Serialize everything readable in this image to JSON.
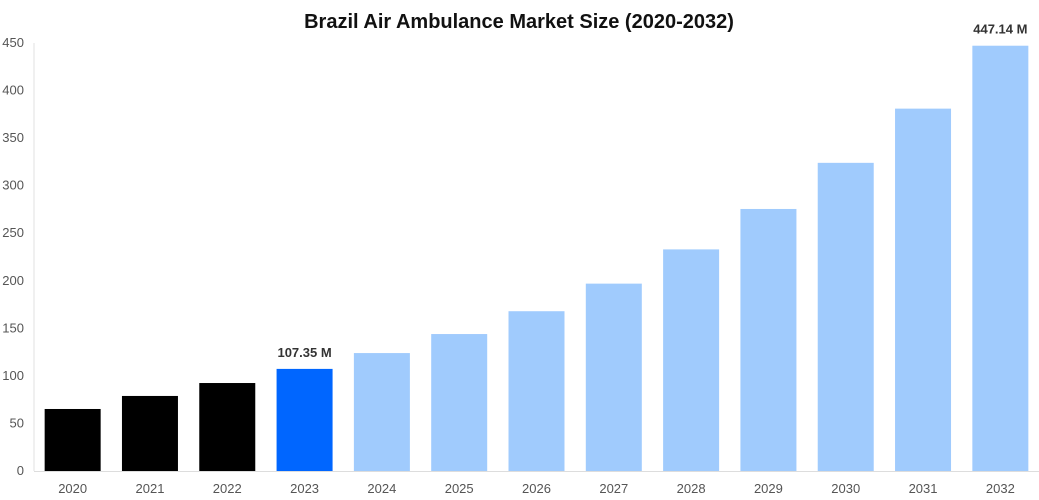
{
  "chart_data": {
    "type": "bar",
    "title": "Brazil Air Ambulance Market Size (2020-2032)",
    "xlabel": "",
    "ylabel": "",
    "ylim": [
      0,
      450
    ],
    "yticks": [
      0,
      50,
      100,
      150,
      200,
      250,
      300,
      350,
      400,
      450
    ],
    "grid": false,
    "categories": [
      "2020",
      "2021",
      "2022",
      "2023",
      "2024",
      "2025",
      "2026",
      "2027",
      "2028",
      "2029",
      "2030",
      "2031",
      "2032"
    ],
    "values": [
      65.2,
      78.9,
      92.5,
      107.35,
      124,
      144,
      168,
      197,
      233,
      275.5,
      324,
      381,
      447.14
    ],
    "bar_colors": [
      "#000000",
      "#000000",
      "#000000",
      "#0066ff",
      "#a0cbfd",
      "#a0cbfd",
      "#a0cbfd",
      "#a0cbfd",
      "#a0cbfd",
      "#a0cbfd",
      "#a0cbfd",
      "#a0cbfd",
      "#a0cbfd"
    ],
    "data_labels": {
      "3": "107.35 M",
      "12": "447.14 M"
    }
  }
}
